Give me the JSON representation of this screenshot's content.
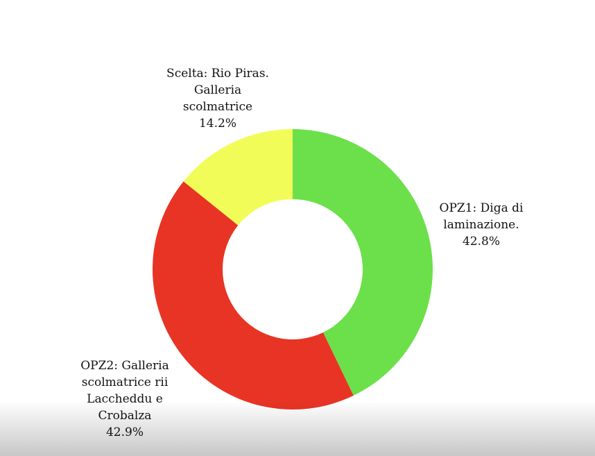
{
  "chart_data": {
    "type": "donut",
    "categories": [
      "OPZ1: Diga di laminazione.",
      "OPZ2: Galleria scolmatrice rii Laccheddu e Crobalza",
      "Scelta: Rio Piras. Galleria scolmatrice"
    ],
    "values": [
      42.8,
      42.9,
      14.2
    ],
    "value_labels": [
      "42.8%",
      "42.9%",
      "14.2%"
    ],
    "colors": [
      "#6ce04a",
      "#e83424",
      "#f2fc58"
    ]
  }
}
